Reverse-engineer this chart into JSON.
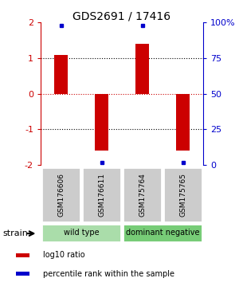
{
  "title": "GDS2691 / 17416",
  "samples": [
    "GSM176606",
    "GSM176611",
    "GSM175764",
    "GSM175765"
  ],
  "log10_ratios": [
    1.1,
    -1.6,
    1.4,
    -1.6
  ],
  "percentile_ranks": [
    98,
    2,
    98,
    2
  ],
  "bar_color": "#cc0000",
  "dot_color": "#0000cc",
  "ylim": [
    -2,
    2
  ],
  "yticks_left": [
    -2,
    -1,
    0,
    1,
    2
  ],
  "yticks_right": [
    0,
    25,
    50,
    75,
    100
  ],
  "yticks_right_labels": [
    "0",
    "25",
    "50",
    "75",
    "100%"
  ],
  "hlines_black": [
    -1,
    1
  ],
  "hline_red": 0,
  "strain_groups": [
    {
      "label": "wild type",
      "samples": [
        0,
        1
      ],
      "color": "#aaddaa"
    },
    {
      "label": "dominant negative",
      "samples": [
        2,
        3
      ],
      "color": "#77cc77"
    }
  ],
  "legend_items": [
    {
      "color": "#cc0000",
      "label": "log10 ratio"
    },
    {
      "color": "#0000cc",
      "label": "percentile rank within the sample"
    }
  ],
  "strain_label": "strain",
  "bg_color": "#ffffff",
  "sample_box_color": "#cccccc",
  "x_positions": [
    0,
    1,
    2,
    3
  ]
}
